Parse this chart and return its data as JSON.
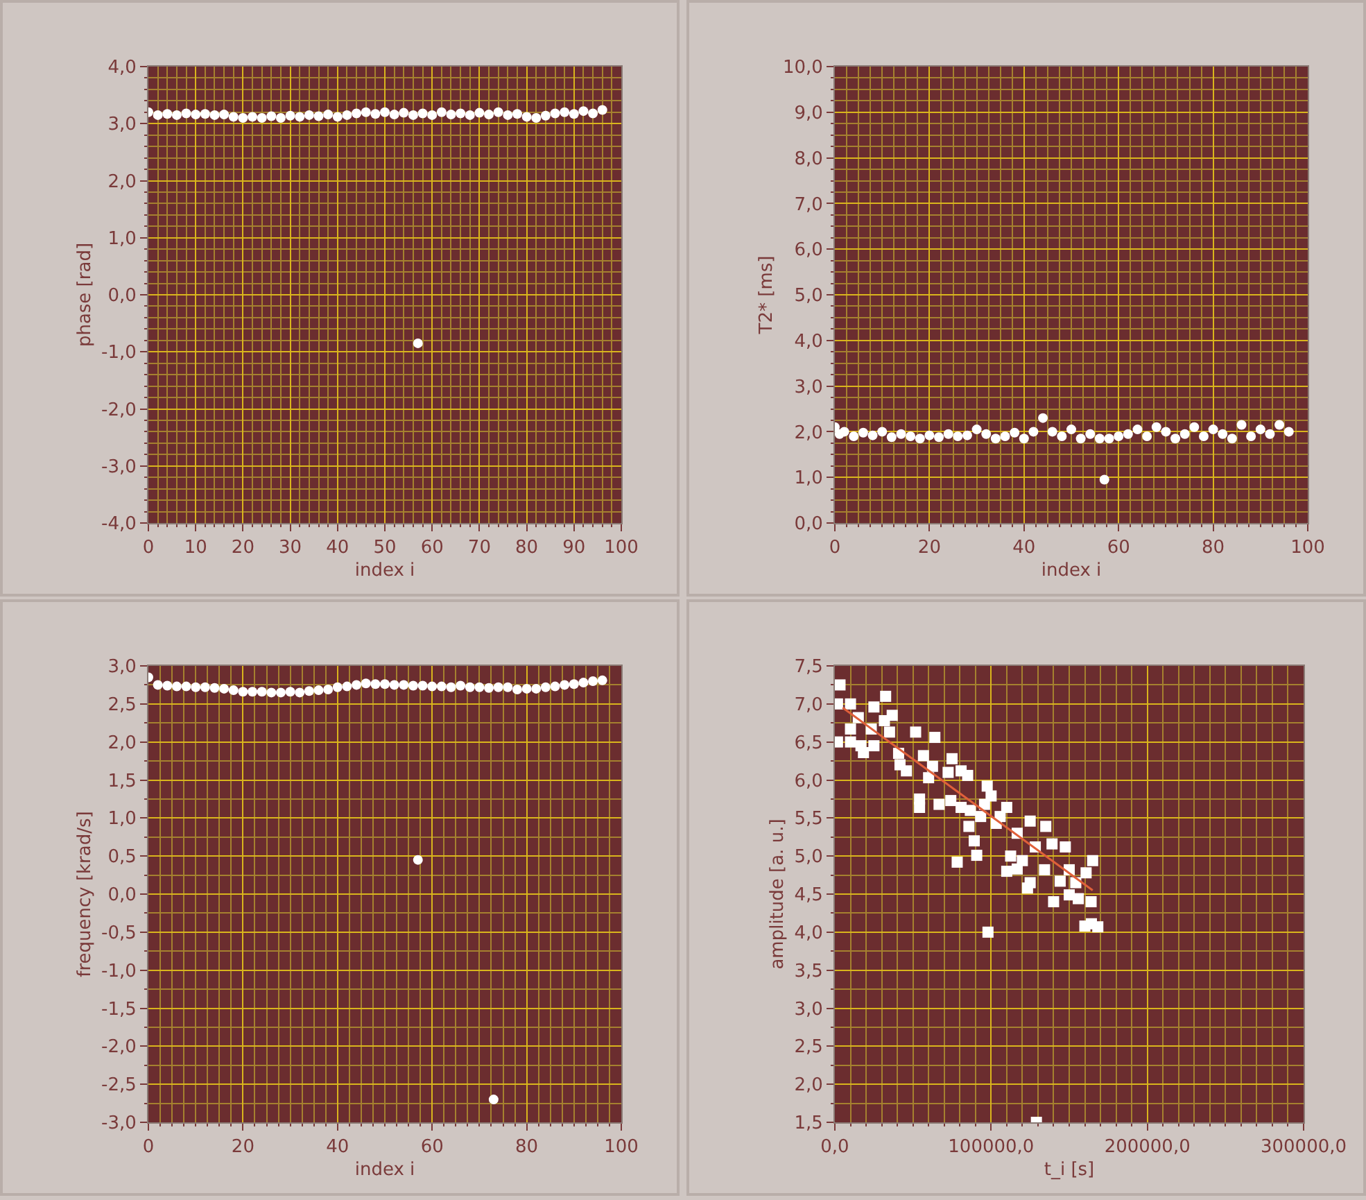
{
  "chart_data": [
    {
      "type": "scatter",
      "xlabel": "index i",
      "ylabel": "phase [rad]",
      "marker": "circle",
      "grid": true,
      "xlim": [
        0,
        100
      ],
      "xticks": [
        0,
        10,
        20,
        30,
        40,
        50,
        60,
        70,
        80,
        90,
        100,
        {
          "value": 2,
          "label": null
        },
        {
          "value": 4,
          "label": null
        },
        {
          "value": 6,
          "label": null
        },
        {
          "value": 8,
          "label": null
        },
        {
          "value": 12,
          "label": null
        },
        {
          "value": 14,
          "label": null
        },
        {
          "value": 16,
          "label": null
        },
        {
          "value": 18,
          "label": null
        },
        {
          "value": 22,
          "label": null
        },
        {
          "value": 24,
          "label": null
        },
        {
          "value": 26,
          "label": null
        },
        {
          "value": 28,
          "label": null
        },
        {
          "value": 32,
          "label": null
        },
        {
          "value": 34,
          "label": null
        },
        {
          "value": 36,
          "label": null
        },
        {
          "value": 38,
          "label": null
        },
        {
          "value": 42,
          "label": null
        },
        {
          "value": 44,
          "label": null
        },
        {
          "value": 46,
          "label": null
        },
        {
          "value": 48,
          "label": null
        },
        {
          "value": 52,
          "label": null
        },
        {
          "value": 54,
          "label": null
        },
        {
          "value": 56,
          "label": null
        },
        {
          "value": 58,
          "label": null
        },
        {
          "value": 62,
          "label": null
        },
        {
          "value": 64,
          "label": null
        },
        {
          "value": 66,
          "label": null
        },
        {
          "value": 68,
          "label": null
        },
        {
          "value": 72,
          "label": null
        },
        {
          "value": 74,
          "label": null
        },
        {
          "value": 76,
          "label": null
        },
        {
          "value": 78,
          "label": null
        },
        {
          "value": 82,
          "label": null
        },
        {
          "value": 84,
          "label": null
        },
        {
          "value": 86,
          "label": null
        },
        {
          "value": 88,
          "label": null
        },
        {
          "value": 92,
          "label": null
        },
        {
          "value": 94,
          "label": null
        },
        {
          "value": 96,
          "label": null
        },
        {
          "value": 98,
          "label": null
        }
      ],
      "ylim": [
        -4,
        4
      ],
      "yticks": [
        {
          "value": -4,
          "label": "-4,0"
        },
        {
          "value": -3,
          "label": "-3,0"
        },
        {
          "value": -2,
          "label": "-2,0"
        },
        {
          "value": -1,
          "label": "-1,0"
        },
        {
          "value": 0,
          "label": "0,0"
        },
        {
          "value": 1,
          "label": "1,0"
        },
        {
          "value": 2,
          "label": "2,0"
        },
        {
          "value": 3,
          "label": "3,0"
        },
        {
          "value": 4,
          "label": "4,0"
        },
        {
          "value": -3.8,
          "label": null
        },
        {
          "value": -3.6,
          "label": null
        },
        {
          "value": -3.4,
          "label": null
        },
        {
          "value": -3.2,
          "label": null
        },
        {
          "value": -2.8,
          "label": null
        },
        {
          "value": -2.6,
          "label": null
        },
        {
          "value": -2.4,
          "label": null
        },
        {
          "value": -2.2,
          "label": null
        },
        {
          "value": -1.8,
          "label": null
        },
        {
          "value": -1.6,
          "label": null
        },
        {
          "value": -1.4,
          "label": null
        },
        {
          "value": -1.2,
          "label": null
        },
        {
          "value": -0.8,
          "label": null
        },
        {
          "value": -0.6,
          "label": null
        },
        {
          "value": -0.4,
          "label": null
        },
        {
          "value": -0.2,
          "label": null
        },
        {
          "value": 0.2,
          "label": null
        },
        {
          "value": 0.4,
          "label": null
        },
        {
          "value": 0.6,
          "label": null
        },
        {
          "value": 0.8,
          "label": null
        },
        {
          "value": 1.2,
          "label": null
        },
        {
          "value": 1.4,
          "label": null
        },
        {
          "value": 1.6,
          "label": null
        },
        {
          "value": 1.8,
          "label": null
        },
        {
          "value": 2.2,
          "label": null
        },
        {
          "value": 2.4,
          "label": null
        },
        {
          "value": 2.6,
          "label": null
        },
        {
          "value": 2.8,
          "label": null
        },
        {
          "value": 3.2,
          "label": null
        },
        {
          "value": 3.4,
          "label": null
        },
        {
          "value": 3.6,
          "label": null
        },
        {
          "value": 3.8,
          "label": null
        }
      ],
      "series": [
        {
          "color": "#ffffff",
          "x": [
            0,
            2,
            4,
            6,
            8,
            10,
            12,
            14,
            16,
            18,
            20,
            22,
            24,
            26,
            28,
            30,
            32,
            34,
            36,
            38,
            40,
            42,
            44,
            46,
            48,
            50,
            52,
            54,
            56,
            57,
            58,
            60,
            62,
            64,
            66,
            68,
            70,
            72,
            74,
            76,
            78,
            80,
            82,
            84,
            86,
            88,
            90,
            92,
            94,
            96
          ],
          "values": [
            3.2,
            3.15,
            3.17,
            3.15,
            3.18,
            3.16,
            3.17,
            3.15,
            3.16,
            3.12,
            3.1,
            3.12,
            3.1,
            3.13,
            3.1,
            3.14,
            3.12,
            3.15,
            3.13,
            3.16,
            3.12,
            3.15,
            3.18,
            3.2,
            3.17,
            3.2,
            3.16,
            3.19,
            3.15,
            -0.85,
            3.18,
            3.15,
            3.2,
            3.16,
            3.18,
            3.15,
            3.19,
            3.16,
            3.2,
            3.15,
            3.17,
            3.12,
            3.1,
            3.14,
            3.18,
            3.2,
            3.17,
            3.22,
            3.18,
            3.24
          ]
        }
      ]
    },
    {
      "type": "scatter",
      "xlabel": "index i",
      "ylabel": "T2* [ms]",
      "marker": "circle",
      "grid": true,
      "xlim": [
        0,
        100
      ],
      "xticks": [
        0,
        20,
        40,
        60,
        80,
        100,
        {
          "value": 2.5,
          "label": null
        },
        {
          "value": 5,
          "label": null
        },
        {
          "value": 7.5,
          "label": null
        },
        {
          "value": 10,
          "label": null
        },
        {
          "value": 12.5,
          "label": null
        },
        {
          "value": 15,
          "label": null
        },
        {
          "value": 17.5,
          "label": null
        },
        {
          "value": 22.5,
          "label": null
        },
        {
          "value": 25,
          "label": null
        },
        {
          "value": 27.5,
          "label": null
        },
        {
          "value": 30,
          "label": null
        },
        {
          "value": 32.5,
          "label": null
        },
        {
          "value": 35,
          "label": null
        },
        {
          "value": 37.5,
          "label": null
        },
        {
          "value": 42.5,
          "label": null
        },
        {
          "value": 45,
          "label": null
        },
        {
          "value": 47.5,
          "label": null
        },
        {
          "value": 50,
          "label": null
        },
        {
          "value": 52.5,
          "label": null
        },
        {
          "value": 55,
          "label": null
        },
        {
          "value": 57.5,
          "label": null
        },
        {
          "value": 62.5,
          "label": null
        },
        {
          "value": 65,
          "label": null
        },
        {
          "value": 67.5,
          "label": null
        },
        {
          "value": 70,
          "label": null
        },
        {
          "value": 72.5,
          "label": null
        },
        {
          "value": 75,
          "label": null
        },
        {
          "value": 77.5,
          "label": null
        },
        {
          "value": 82.5,
          "label": null
        },
        {
          "value": 85,
          "label": null
        },
        {
          "value": 87.5,
          "label": null
        },
        {
          "value": 90,
          "label": null
        },
        {
          "value": 92.5,
          "label": null
        },
        {
          "value": 95,
          "label": null
        },
        {
          "value": 97.5,
          "label": null
        }
      ],
      "ylim": [
        0,
        10
      ],
      "yticks": [
        {
          "value": 0,
          "label": "0,0"
        },
        {
          "value": 1,
          "label": "1,0"
        },
        {
          "value": 2,
          "label": "2,0"
        },
        {
          "value": 3,
          "label": "3,0"
        },
        {
          "value": 4,
          "label": "4,0"
        },
        {
          "value": 5,
          "label": "5,0"
        },
        {
          "value": 6,
          "label": "6,0"
        },
        {
          "value": 7,
          "label": "7,0"
        },
        {
          "value": 8,
          "label": "8,0"
        },
        {
          "value": 9,
          "label": "9,0"
        },
        {
          "value": 10,
          "label": "10,0"
        },
        {
          "value": 0.25,
          "label": null
        },
        {
          "value": 0.5,
          "label": null
        },
        {
          "value": 0.75,
          "label": null
        },
        {
          "value": 1.25,
          "label": null
        },
        {
          "value": 1.5,
          "label": null
        },
        {
          "value": 1.75,
          "label": null
        },
        {
          "value": 2.25,
          "label": null
        },
        {
          "value": 2.5,
          "label": null
        },
        {
          "value": 2.75,
          "label": null
        },
        {
          "value": 3.25,
          "label": null
        },
        {
          "value": 3.5,
          "label": null
        },
        {
          "value": 3.75,
          "label": null
        },
        {
          "value": 4.25,
          "label": null
        },
        {
          "value": 4.5,
          "label": null
        },
        {
          "value": 4.75,
          "label": null
        },
        {
          "value": 5.25,
          "label": null
        },
        {
          "value": 5.5,
          "label": null
        },
        {
          "value": 5.75,
          "label": null
        },
        {
          "value": 6.25,
          "label": null
        },
        {
          "value": 6.5,
          "label": null
        },
        {
          "value": 6.75,
          "label": null
        },
        {
          "value": 7.25,
          "label": null
        },
        {
          "value": 7.5,
          "label": null
        },
        {
          "value": 7.75,
          "label": null
        },
        {
          "value": 8.25,
          "label": null
        },
        {
          "value": 8.5,
          "label": null
        },
        {
          "value": 8.75,
          "label": null
        },
        {
          "value": 9.25,
          "label": null
        },
        {
          "value": 9.5,
          "label": null
        },
        {
          "value": 9.75,
          "label": null
        }
      ],
      "series": [
        {
          "color": "#ffffff",
          "x": [
            0,
            1,
            2,
            4,
            6,
            8,
            10,
            12,
            14,
            16,
            18,
            20,
            22,
            24,
            26,
            28,
            30,
            32,
            34,
            36,
            38,
            40,
            42,
            44,
            46,
            48,
            50,
            52,
            54,
            56,
            57,
            58,
            60,
            62,
            64,
            66,
            68,
            70,
            72,
            74,
            76,
            78,
            80,
            82,
            84,
            86,
            88,
            90,
            92,
            94,
            96
          ],
          "values": [
            2.1,
            1.95,
            2.0,
            1.9,
            1.98,
            1.92,
            2.0,
            1.88,
            1.95,
            1.9,
            1.85,
            1.92,
            1.88,
            1.95,
            1.9,
            1.92,
            2.05,
            1.95,
            1.85,
            1.9,
            1.98,
            1.85,
            2.0,
            2.3,
            2.0,
            1.9,
            2.05,
            1.85,
            1.95,
            1.85,
            0.95,
            1.85,
            1.9,
            1.95,
            2.05,
            1.9,
            2.1,
            2.0,
            1.85,
            1.95,
            2.1,
            1.9,
            2.05,
            1.95,
            1.85,
            2.15,
            1.9,
            2.05,
            1.95,
            2.15,
            2.0
          ]
        }
      ]
    },
    {
      "type": "scatter",
      "xlabel": "index i",
      "ylabel": "frequency [krad/s]",
      "marker": "circle",
      "grid": true,
      "xlim": [
        0,
        100
      ],
      "xticks": [
        0,
        20,
        40,
        60,
        80,
        100,
        {
          "value": 2.5,
          "label": null
        },
        {
          "value": 5,
          "label": null
        },
        {
          "value": 7.5,
          "label": null
        },
        {
          "value": 10,
          "label": null
        },
        {
          "value": 12.5,
          "label": null
        },
        {
          "value": 15,
          "label": null
        },
        {
          "value": 17.5,
          "label": null
        },
        {
          "value": 22.5,
          "label": null
        },
        {
          "value": 25,
          "label": null
        },
        {
          "value": 27.5,
          "label": null
        },
        {
          "value": 30,
          "label": null
        },
        {
          "value": 32.5,
          "label": null
        },
        {
          "value": 35,
          "label": null
        },
        {
          "value": 37.5,
          "label": null
        },
        {
          "value": 42.5,
          "label": null
        },
        {
          "value": 45,
          "label": null
        },
        {
          "value": 47.5,
          "label": null
        },
        {
          "value": 50,
          "label": null
        },
        {
          "value": 52.5,
          "label": null
        },
        {
          "value": 55,
          "label": null
        },
        {
          "value": 57.5,
          "label": null
        },
        {
          "value": 62.5,
          "label": null
        },
        {
          "value": 65,
          "label": null
        },
        {
          "value": 67.5,
          "label": null
        },
        {
          "value": 70,
          "label": null
        },
        {
          "value": 72.5,
          "label": null
        },
        {
          "value": 75,
          "label": null
        },
        {
          "value": 77.5,
          "label": null
        },
        {
          "value": 82.5,
          "label": null
        },
        {
          "value": 85,
          "label": null
        },
        {
          "value": 87.5,
          "label": null
        },
        {
          "value": 90,
          "label": null
        },
        {
          "value": 92.5,
          "label": null
        },
        {
          "value": 95,
          "label": null
        },
        {
          "value": 97.5,
          "label": null
        }
      ],
      "ylim": [
        -3,
        3
      ],
      "yticks": [
        {
          "value": -3,
          "label": "-3,0"
        },
        {
          "value": -2.5,
          "label": "-2,5"
        },
        {
          "value": -2,
          "label": "-2,0"
        },
        {
          "value": -1.5,
          "label": "-1,5"
        },
        {
          "value": -1,
          "label": "-1,0"
        },
        {
          "value": -0.5,
          "label": "-0,5"
        },
        {
          "value": 0,
          "label": "0,0"
        },
        {
          "value": 0.5,
          "label": "0,5"
        },
        {
          "value": 1,
          "label": "1,0"
        },
        {
          "value": 1.5,
          "label": "1,5"
        },
        {
          "value": 2,
          "label": "2,0"
        },
        {
          "value": 2.5,
          "label": "2,5"
        },
        {
          "value": 3,
          "label": "3,0"
        },
        {
          "value": -2.75,
          "label": null
        },
        {
          "value": -2.25,
          "label": null
        },
        {
          "value": -1.75,
          "label": null
        },
        {
          "value": -1.25,
          "label": null
        },
        {
          "value": -0.75,
          "label": null
        },
        {
          "value": -0.25,
          "label": null
        },
        {
          "value": 0.25,
          "label": null
        },
        {
          "value": 0.75,
          "label": null
        },
        {
          "value": 1.25,
          "label": null
        },
        {
          "value": 1.75,
          "label": null
        },
        {
          "value": 2.25,
          "label": null
        },
        {
          "value": 2.75,
          "label": null
        }
      ],
      "series": [
        {
          "color": "#ffffff",
          "x": [
            0,
            2,
            4,
            6,
            8,
            10,
            12,
            14,
            16,
            18,
            20,
            22,
            24,
            26,
            28,
            30,
            32,
            34,
            36,
            38,
            40,
            42,
            44,
            46,
            48,
            50,
            52,
            54,
            56,
            57,
            58,
            60,
            62,
            64,
            66,
            68,
            70,
            72,
            73,
            74,
            76,
            78,
            80,
            82,
            84,
            86,
            88,
            90,
            92,
            94,
            96
          ],
          "values": [
            2.85,
            2.75,
            2.74,
            2.73,
            2.73,
            2.72,
            2.72,
            2.71,
            2.7,
            2.68,
            2.66,
            2.66,
            2.66,
            2.65,
            2.65,
            2.66,
            2.65,
            2.67,
            2.68,
            2.69,
            2.72,
            2.73,
            2.75,
            2.77,
            2.76,
            2.76,
            2.75,
            2.75,
            2.74,
            0.45,
            2.74,
            2.73,
            2.73,
            2.72,
            2.74,
            2.72,
            2.72,
            2.71,
            -2.7,
            2.72,
            2.72,
            2.69,
            2.7,
            2.7,
            2.72,
            2.73,
            2.75,
            2.76,
            2.78,
            2.8,
            2.81
          ]
        }
      ]
    },
    {
      "type": "scatter",
      "xlabel": "t_i [s]",
      "ylabel": "amplitude [a. u.]",
      "marker": "square",
      "grid": true,
      "xlim": [
        0,
        300000
      ],
      "xticks": [
        {
          "value": 0,
          "label": "0,0"
        },
        {
          "value": 100000,
          "label": "100000,0"
        },
        {
          "value": 200000,
          "label": "200000,0"
        },
        {
          "value": 300000,
          "label": "300000,0"
        },
        {
          "value": 10000,
          "label": null
        },
        {
          "value": 20000,
          "label": null
        },
        {
          "value": 30000,
          "label": null
        },
        {
          "value": 40000,
          "label": null
        },
        {
          "value": 50000,
          "label": null
        },
        {
          "value": 60000,
          "label": null
        },
        {
          "value": 70000,
          "label": null
        },
        {
          "value": 80000,
          "label": null
        },
        {
          "value": 90000,
          "label": null
        },
        {
          "value": 110000,
          "label": null
        },
        {
          "value": 120000,
          "label": null
        },
        {
          "value": 130000,
          "label": null
        },
        {
          "value": 140000,
          "label": null
        },
        {
          "value": 150000,
          "label": null
        },
        {
          "value": 160000,
          "label": null
        },
        {
          "value": 170000,
          "label": null
        },
        {
          "value": 180000,
          "label": null
        },
        {
          "value": 190000,
          "label": null
        },
        {
          "value": 210000,
          "label": null
        },
        {
          "value": 220000,
          "label": null
        },
        {
          "value": 230000,
          "label": null
        },
        {
          "value": 240000,
          "label": null
        },
        {
          "value": 250000,
          "label": null
        },
        {
          "value": 260000,
          "label": null
        },
        {
          "value": 270000,
          "label": null
        },
        {
          "value": 280000,
          "label": null
        },
        {
          "value": 290000,
          "label": null
        }
      ],
      "ylim": [
        1.5,
        7.5
      ],
      "yticks": [
        {
          "value": 1.5,
          "label": "1,5"
        },
        {
          "value": 2,
          "label": "2,0"
        },
        {
          "value": 2.5,
          "label": "2,5"
        },
        {
          "value": 3,
          "label": "3,0"
        },
        {
          "value": 3.5,
          "label": "3,5"
        },
        {
          "value": 4,
          "label": "4,0"
        },
        {
          "value": 4.5,
          "label": "4,5"
        },
        {
          "value": 5,
          "label": "5,0"
        },
        {
          "value": 5.5,
          "label": "5,5"
        },
        {
          "value": 6,
          "label": "6,0"
        },
        {
          "value": 6.5,
          "label": "6,5"
        },
        {
          "value": 7,
          "label": "7,0"
        },
        {
          "value": 7.5,
          "label": "7,5"
        },
        {
          "value": 1.75,
          "label": null
        },
        {
          "value": 2.25,
          "label": null
        },
        {
          "value": 2.75,
          "label": null
        },
        {
          "value": 3.25,
          "label": null
        },
        {
          "value": 3.75,
          "label": null
        },
        {
          "value": 4.25,
          "label": null
        },
        {
          "value": 4.75,
          "label": null
        },
        {
          "value": 5.25,
          "label": null
        },
        {
          "value": 5.75,
          "label": null
        },
        {
          "value": 6.25,
          "label": null
        },
        {
          "value": 6.75,
          "label": null
        },
        {
          "value": 7.25,
          "label": null
        }
      ],
      "series": [
        {
          "color": "#ffffff",
          "x": [
            3300,
            1700,
            10000,
            32500,
            25000,
            36700,
            15000,
            31700,
            10000,
            23300,
            35000,
            51700,
            64000,
            1700,
            10000,
            16700,
            25000,
            18300,
            40800,
            56700,
            75000,
            41700,
            62500,
            45800,
            80800,
            72500,
            60000,
            85000,
            97500,
            100000,
            54200,
            66700,
            74200,
            80800,
            95800,
            54200,
            86700,
            110000,
            93300,
            105800,
            103300,
            125000,
            135000,
            85800,
            116700,
            89200,
            128300,
            139000,
            147500,
            90800,
            112500,
            120000,
            78300,
            165000,
            110000,
            116700,
            134200,
            150000,
            160800,
            144200,
            154200,
            125000,
            123300,
            150000,
            155800,
            140000,
            164200,
            98000,
            160000,
            168300,
            164000,
            129000
          ],
          "values": [
            7.25,
            7.0,
            7.0,
            7.1,
            6.96,
            6.85,
            6.82,
            6.78,
            6.67,
            6.67,
            6.63,
            6.63,
            6.56,
            6.5,
            6.5,
            6.45,
            6.45,
            6.36,
            6.35,
            6.32,
            6.28,
            6.2,
            6.18,
            6.12,
            6.12,
            6.1,
            6.03,
            6.06,
            5.92,
            5.79,
            5.75,
            5.68,
            5.73,
            5.64,
            5.68,
            5.64,
            5.6,
            5.64,
            5.52,
            5.52,
            5.43,
            5.46,
            5.39,
            5.39,
            5.3,
            5.2,
            5.12,
            5.16,
            5.12,
            5.01,
            5.0,
            4.94,
            4.92,
            4.94,
            4.8,
            4.83,
            4.82,
            4.82,
            4.78,
            4.67,
            4.65,
            4.65,
            4.58,
            4.49,
            4.44,
            4.4,
            4.11,
            4.0,
            4.08,
            4.07,
            4.4,
            1.5
          ]
        },
        {
          "type": "line",
          "color": "#e0603a",
          "marker": "none",
          "x": [
            5000,
            165000
          ],
          "values": [
            6.95,
            4.55
          ]
        }
      ]
    }
  ]
}
